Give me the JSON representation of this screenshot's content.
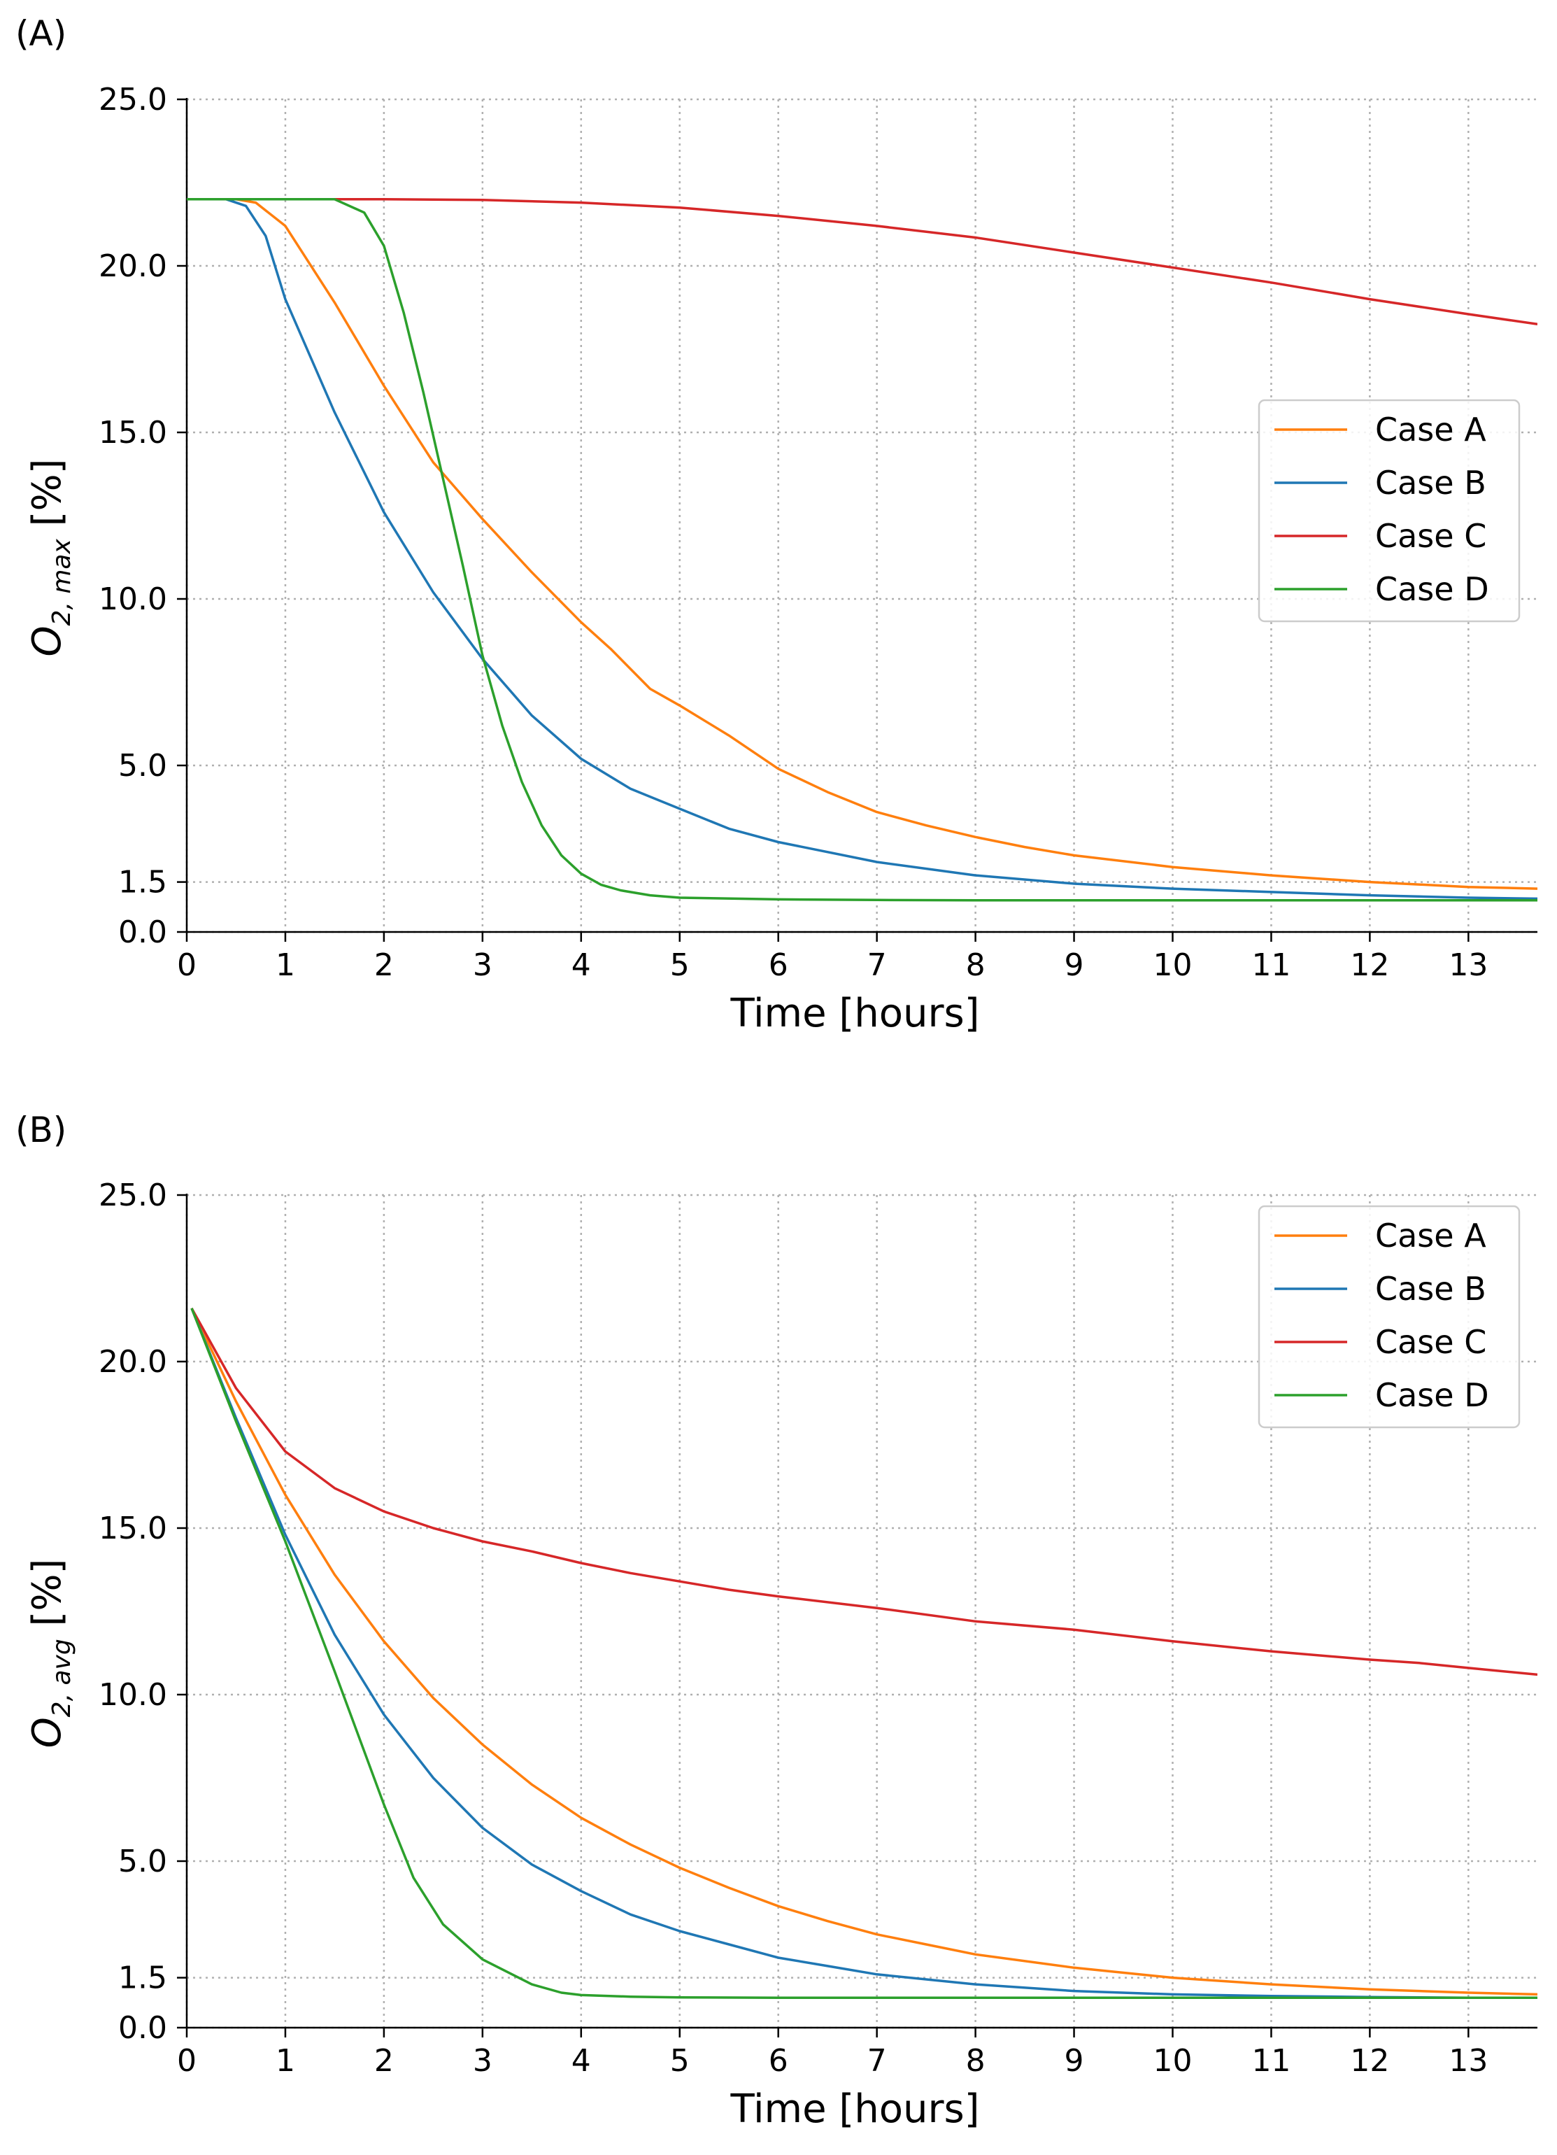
{
  "chart_data": [
    {
      "panel_label": "(A)",
      "type": "line",
      "xlabel": "Time [hours]",
      "ylabel_main": "O",
      "ylabel_sub": "2, max",
      "ylabel_unit": " [%]",
      "xlim": [
        0,
        13.7
      ],
      "ylim": [
        0,
        25
      ],
      "xticks": [
        0,
        1,
        2,
        3,
        4,
        5,
        6,
        7,
        8,
        9,
        10,
        11,
        12,
        13
      ],
      "xtick_labels": [
        "0",
        "1",
        "2",
        "3",
        "4",
        "5",
        "6",
        "7",
        "8",
        "9",
        "10",
        "11",
        "12",
        "13"
      ],
      "yticks": [
        0,
        1.5,
        5,
        10,
        15,
        20,
        25
      ],
      "ytick_labels": [
        "0.0",
        "1.5",
        "5.0",
        "10.0",
        "15.0",
        "20.0",
        "25.0"
      ],
      "grid": true,
      "legend_position": "center-right",
      "series": [
        {
          "name": "Case A",
          "color": "#ff7f0e",
          "x": [
            0,
            0.5,
            0.7,
            1,
            1.5,
            2,
            2.5,
            3,
            3.5,
            4,
            4.3,
            4.7,
            5,
            5.5,
            6,
            6.5,
            7,
            7.5,
            8,
            8.5,
            9,
            10,
            11,
            12,
            13,
            13.7
          ],
          "y": [
            22,
            22,
            21.9,
            21.2,
            18.9,
            16.4,
            14.1,
            12.4,
            10.8,
            9.3,
            8.5,
            7.3,
            6.8,
            5.9,
            4.9,
            4.2,
            3.6,
            3.2,
            2.85,
            2.55,
            2.3,
            1.95,
            1.7,
            1.5,
            1.35,
            1.3
          ]
        },
        {
          "name": "Case B",
          "color": "#1f77b4",
          "x": [
            0,
            0.4,
            0.6,
            0.8,
            1,
            1.5,
            2,
            2.5,
            3,
            3.5,
            4,
            4.5,
            5,
            5.5,
            6,
            7,
            8,
            9,
            10,
            11,
            12,
            13,
            13.7
          ],
          "y": [
            22,
            22,
            21.8,
            20.9,
            19,
            15.6,
            12.6,
            10.2,
            8.2,
            6.5,
            5.2,
            4.3,
            3.7,
            3.1,
            2.7,
            2.1,
            1.7,
            1.45,
            1.3,
            1.2,
            1.1,
            1.03,
            1.0
          ]
        },
        {
          "name": "Case C",
          "color": "#d62728",
          "x": [
            0,
            1,
            2,
            3,
            4,
            5,
            6,
            7,
            8,
            9,
            10,
            11,
            12,
            13,
            13.7
          ],
          "y": [
            22,
            22,
            22,
            21.98,
            21.9,
            21.75,
            21.5,
            21.2,
            20.85,
            20.4,
            19.95,
            19.5,
            19.0,
            18.55,
            18.25
          ]
        },
        {
          "name": "Case D",
          "color": "#2ca02c",
          "x": [
            0,
            1.5,
            1.8,
            2,
            2.2,
            2.4,
            2.6,
            2.8,
            3,
            3.2,
            3.4,
            3.6,
            3.8,
            4,
            4.2,
            4.4,
            4.7,
            5,
            6,
            7,
            8,
            9,
            10,
            11,
            12,
            13,
            13.7
          ],
          "y": [
            22,
            22,
            21.6,
            20.6,
            18.6,
            16.2,
            13.6,
            11,
            8.3,
            6.2,
            4.5,
            3.2,
            2.3,
            1.75,
            1.42,
            1.25,
            1.1,
            1.03,
            0.98,
            0.96,
            0.95,
            0.95,
            0.95,
            0.95,
            0.95,
            0.95,
            0.95
          ]
        }
      ]
    },
    {
      "panel_label": "(B)",
      "type": "line",
      "xlabel": "Time [hours]",
      "ylabel_main": "O",
      "ylabel_sub": "2, avg",
      "ylabel_unit": " [%]",
      "xlim": [
        0,
        13.7
      ],
      "ylim": [
        0,
        25
      ],
      "xticks": [
        0,
        1,
        2,
        3,
        4,
        5,
        6,
        7,
        8,
        9,
        10,
        11,
        12,
        13
      ],
      "xtick_labels": [
        "0",
        "1",
        "2",
        "3",
        "4",
        "5",
        "6",
        "7",
        "8",
        "9",
        "10",
        "11",
        "12",
        "13"
      ],
      "yticks": [
        0,
        1.5,
        5,
        10,
        15,
        20,
        25
      ],
      "ytick_labels": [
        "0.0",
        "1.5",
        "5.0",
        "10.0",
        "15.0",
        "20.0",
        "25.0"
      ],
      "grid": true,
      "legend_position": "top-right",
      "series": [
        {
          "name": "Case A",
          "color": "#ff7f0e",
          "x": [
            0.05,
            0.5,
            1,
            1.5,
            2,
            2.5,
            3,
            3.5,
            4,
            4.5,
            5,
            5.5,
            6,
            6.5,
            7,
            7.5,
            8,
            9,
            10,
            11,
            12,
            13,
            13.7
          ],
          "y": [
            21.6,
            18.8,
            16,
            13.6,
            11.6,
            9.9,
            8.5,
            7.3,
            6.3,
            5.5,
            4.8,
            4.2,
            3.65,
            3.2,
            2.8,
            2.5,
            2.2,
            1.8,
            1.5,
            1.3,
            1.15,
            1.05,
            1.0
          ]
        },
        {
          "name": "Case B",
          "color": "#1f77b4",
          "x": [
            0.05,
            0.5,
            1,
            1.5,
            2,
            2.5,
            3,
            3.5,
            4,
            4.5,
            5,
            5.5,
            6,
            6.5,
            7,
            8,
            9,
            10,
            11,
            12,
            13,
            13.7
          ],
          "y": [
            21.6,
            18.3,
            14.8,
            11.8,
            9.4,
            7.5,
            6.0,
            4.9,
            4.1,
            3.4,
            2.9,
            2.5,
            2.1,
            1.85,
            1.6,
            1.3,
            1.1,
            1.0,
            0.95,
            0.92,
            0.9,
            0.9
          ]
        },
        {
          "name": "Case C",
          "color": "#d62728",
          "x": [
            0.05,
            0.5,
            1,
            1.5,
            2,
            2.5,
            3,
            3.5,
            4,
            4.5,
            5,
            5.5,
            6,
            7,
            8,
            9,
            10,
            11,
            12,
            12.5,
            13,
            13.7
          ],
          "y": [
            21.6,
            19.2,
            17.3,
            16.2,
            15.5,
            15.0,
            14.6,
            14.3,
            13.95,
            13.65,
            13.4,
            13.15,
            12.95,
            12.6,
            12.2,
            11.95,
            11.6,
            11.3,
            11.05,
            10.95,
            10.8,
            10.6
          ]
        },
        {
          "name": "Case D",
          "color": "#2ca02c",
          "x": [
            0.05,
            0.5,
            1,
            1.5,
            2,
            2.3,
            2.6,
            3,
            3.2,
            3.5,
            3.8,
            4,
            4.5,
            5,
            6,
            7,
            8,
            9,
            10,
            11,
            12,
            13,
            13.7
          ],
          "y": [
            21.6,
            18.2,
            14.6,
            10.7,
            6.7,
            4.5,
            3.1,
            2.05,
            1.75,
            1.3,
            1.05,
            0.98,
            0.93,
            0.91,
            0.9,
            0.9,
            0.9,
            0.9,
            0.9,
            0.9,
            0.9,
            0.9,
            0.9
          ]
        }
      ]
    }
  ]
}
